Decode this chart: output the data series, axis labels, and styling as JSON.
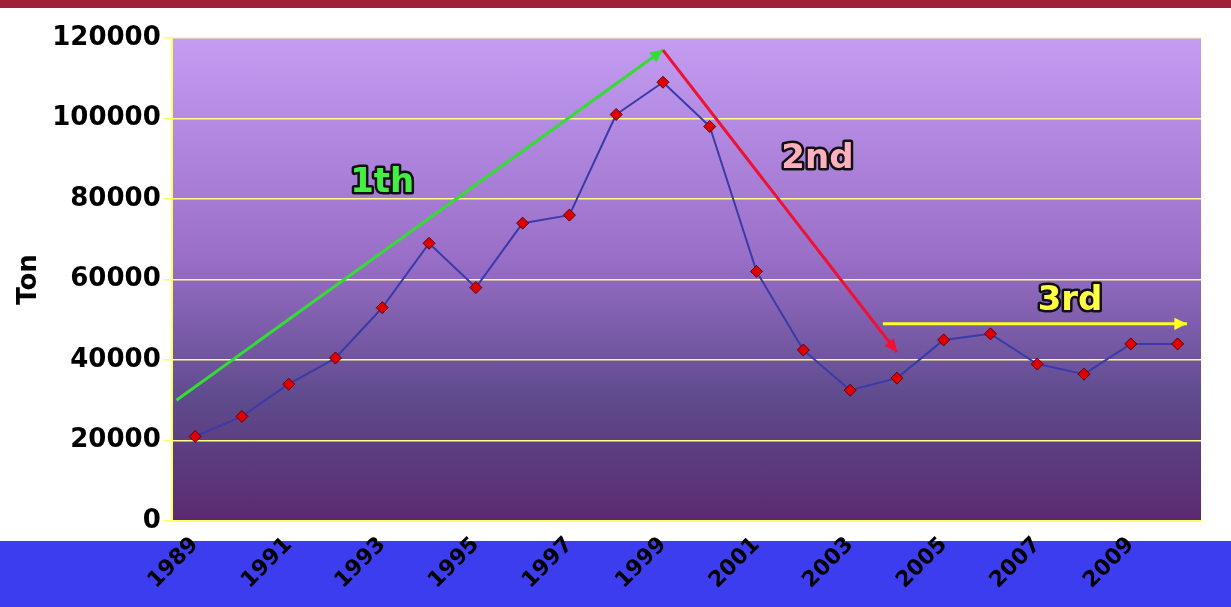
{
  "chart_data": {
    "type": "line",
    "ylabel": "Ton",
    "categories": [
      "1989",
      null,
      "1991",
      null,
      "1993",
      null,
      "1995",
      null,
      "1997",
      null,
      "1999",
      null,
      "2001",
      null,
      "2003",
      null,
      "2005",
      null,
      "2007",
      null,
      "2009",
      null
    ],
    "series": [
      {
        "color": "#3a3aa8",
        "values": [
          21000,
          26000,
          34000,
          40500,
          53000,
          69000,
          58000,
          74000,
          76000,
          101000,
          109000,
          98000,
          62000,
          42500,
          32500,
          35500,
          45000,
          46500,
          39000,
          36500,
          44000,
          44000
        ]
      }
    ],
    "ylim": [
      0,
      120000
    ],
    "yticks": [
      0,
      20000,
      40000,
      60000,
      80000,
      100000,
      120000
    ],
    "grid": "y",
    "legend": false,
    "marker": "diamond",
    "annotations": [
      "1th",
      "2nd",
      "3rd"
    ]
  }
}
